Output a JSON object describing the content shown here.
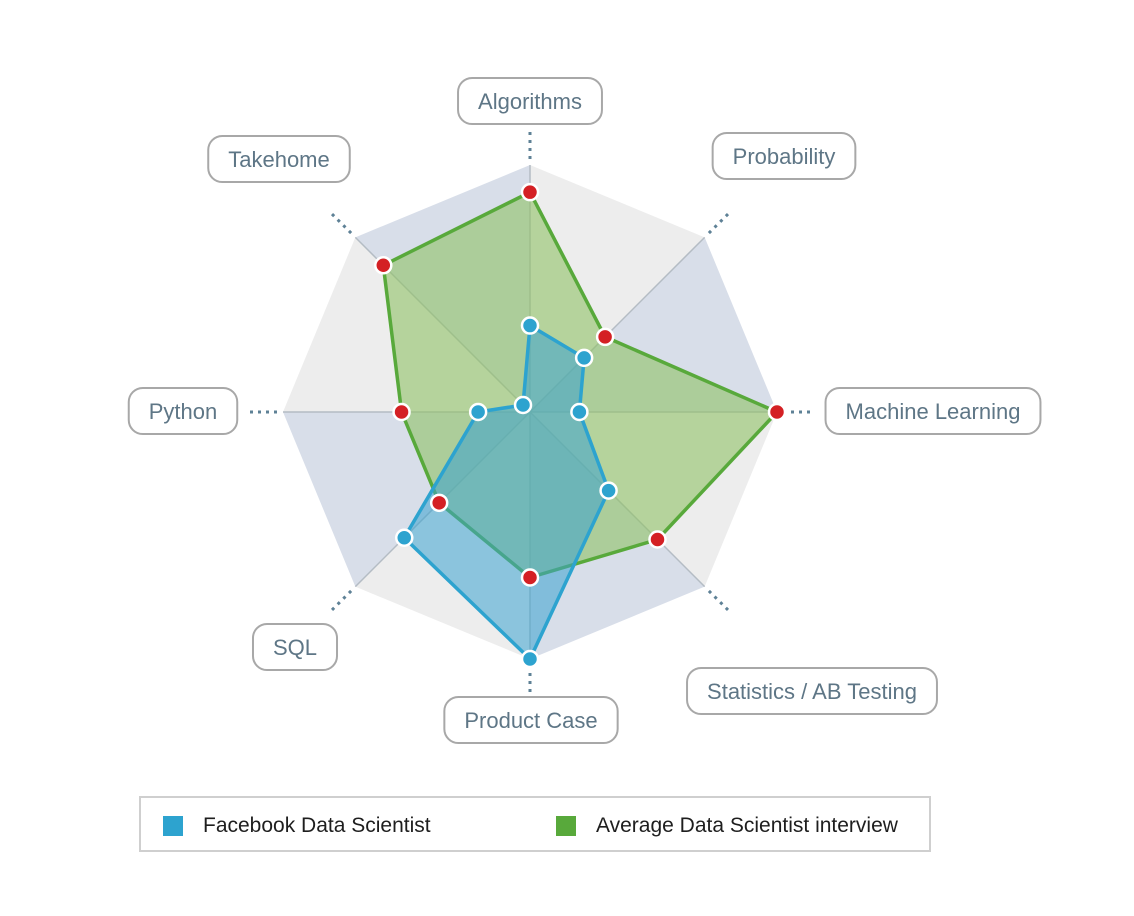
{
  "chart_data": {
    "type": "radar",
    "axes": [
      "Algorithms",
      "Probability",
      "Machine Learning",
      "Statistics / AB Testing",
      "Product Case",
      "SQL",
      "Python",
      "Takehome"
    ],
    "max": 10,
    "series": [
      {
        "name": "Facebook Data Scientist",
        "color": "#2da3cf",
        "fill": "#3aa3cf",
        "marker_color": "#2da3cf",
        "values": [
          3.5,
          3.1,
          2.0,
          4.5,
          10.0,
          7.2,
          2.1,
          0.4
        ]
      },
      {
        "name": "Average Data Scientist interview",
        "color": "#58a93b",
        "fill": "#8fc266",
        "marker_color": "#d42024",
        "values": [
          8.9,
          4.3,
          10.0,
          7.3,
          6.7,
          5.2,
          5.2,
          8.4
        ]
      }
    ],
    "background_bands": {
      "odd": "#d8dee9",
      "even": "#ededed"
    }
  },
  "legend": {
    "items": [
      {
        "label": "Facebook Data Scientist",
        "color": "#2da3cf"
      },
      {
        "label": "Average Data Scientist interview",
        "color": "#58a93b"
      }
    ]
  }
}
